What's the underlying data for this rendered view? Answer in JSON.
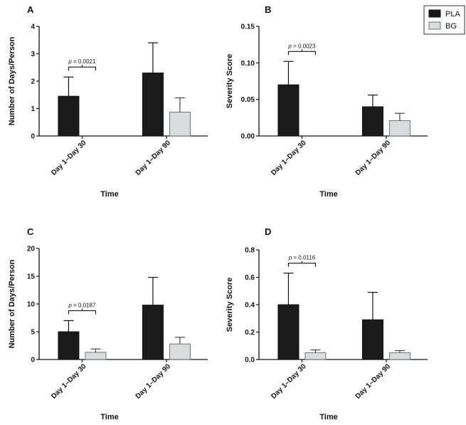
{
  "legend": {
    "placement": "top-right",
    "entries": [
      {
        "label": "PLA",
        "color": "#1a1a1a"
      },
      {
        "label": "BG",
        "color": "#d9dcdd"
      }
    ]
  },
  "chart_data": [
    {
      "type": "bar",
      "panel": "A",
      "categories": [
        "Day 1–Day 30",
        "Day 1–Day 90"
      ],
      "series": [
        {
          "name": "PLA",
          "values": [
            1.45,
            2.3
          ],
          "errors": [
            0.7,
            1.1
          ]
        },
        {
          "name": "BG",
          "values": [
            0.0,
            0.87
          ],
          "errors": [
            0.0,
            0.52
          ]
        }
      ],
      "xlabel": "Time",
      "ylabel": "Number of Days/Person",
      "ylim": [
        0,
        4
      ],
      "yticks": [
        "0",
        "1",
        "2",
        "3",
        "4"
      ],
      "annotation": {
        "p_label": "p",
        "p_value": " = 0.0021",
        "category_index": 0
      }
    },
    {
      "type": "bar",
      "panel": "B",
      "categories": [
        "Day 1–Day 30",
        "Day 1–Day 90"
      ],
      "series": [
        {
          "name": "PLA",
          "values": [
            0.07,
            0.04
          ],
          "errors": [
            0.032,
            0.016
          ]
        },
        {
          "name": "BG",
          "values": [
            0.0,
            0.021
          ],
          "errors": [
            0.0,
            0.01
          ]
        }
      ],
      "xlabel": "Time",
      "ylabel": "Severity Score",
      "ylim": [
        0,
        0.15
      ],
      "yticks": [
        "0.00",
        "0.05",
        "0.10",
        "0.15"
      ],
      "annotation": {
        "p_label": "p",
        "p_value": " = 0.0023",
        "category_index": 0
      }
    },
    {
      "type": "bar",
      "panel": "C",
      "categories": [
        "Day 1–Day 30",
        "Day 1–Day 90"
      ],
      "series": [
        {
          "name": "PLA",
          "values": [
            5.0,
            9.8
          ],
          "errors": [
            2.0,
            5.0
          ]
        },
        {
          "name": "BG",
          "values": [
            1.3,
            2.8
          ],
          "errors": [
            0.6,
            1.2
          ]
        }
      ],
      "xlabel": "Time",
      "ylabel": "Number of Days/Person",
      "ylim": [
        0,
        20
      ],
      "yticks": [
        "0",
        "5",
        "10",
        "15",
        "20"
      ],
      "annotation": {
        "p_label": "p",
        "p_value": " = 0.0187",
        "category_index": 0
      }
    },
    {
      "type": "bar",
      "panel": "D",
      "categories": [
        "Day 1–Day 30",
        "Day 1–Day 90"
      ],
      "series": [
        {
          "name": "PLA",
          "values": [
            0.4,
            0.29
          ],
          "errors": [
            0.23,
            0.2
          ]
        },
        {
          "name": "BG",
          "values": [
            0.05,
            0.05
          ],
          "errors": [
            0.02,
            0.015
          ]
        }
      ],
      "xlabel": "Time",
      "ylabel": "Severity Score",
      "ylim": [
        0,
        0.8
      ],
      "yticks": [
        "0.0",
        "0.2",
        "0.4",
        "0.6",
        "0.8"
      ],
      "annotation": {
        "p_label": "p",
        "p_value": " = 0.0116",
        "category_index": 0
      }
    }
  ]
}
